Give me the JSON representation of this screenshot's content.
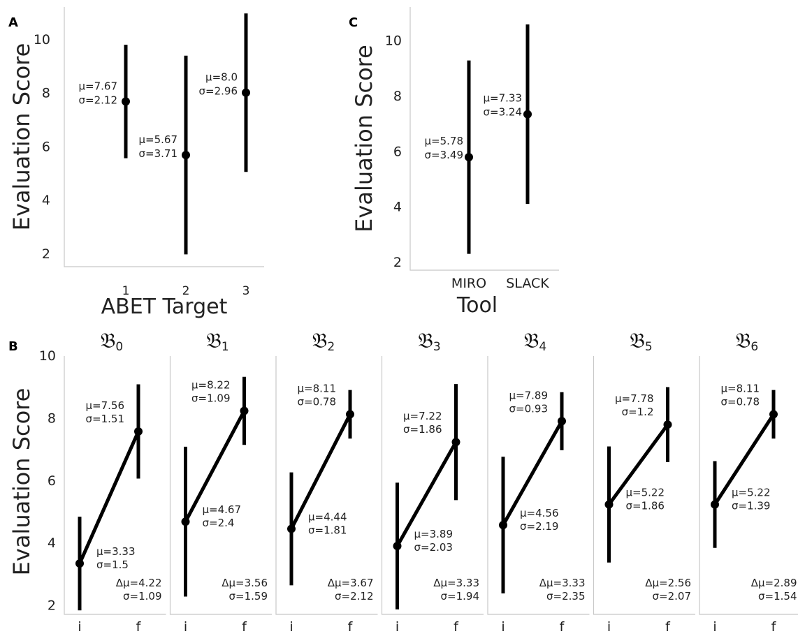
{
  "chart_data": [
    {
      "panel": "A",
      "type": "scatter",
      "ylabel": "Evaluation Score",
      "xlabel": "ABET Target",
      "ylim": [
        1.5,
        11.2
      ],
      "yticks": [
        "2",
        "4",
        "6",
        "8",
        "10"
      ],
      "categories": [
        {
          "base": "𝔆",
          "sub": "1"
        },
        {
          "base": "𝔆",
          "sub": "2"
        },
        {
          "base": "𝔆",
          "sub": "3"
        }
      ],
      "points": [
        {
          "mean": 7.67,
          "low": 5.55,
          "high": 9.79,
          "mu_text": "μ=7.67",
          "sigma_text": "σ=2.12"
        },
        {
          "mean": 5.67,
          "low": 1.96,
          "high": 9.38,
          "mu_text": "μ=5.67",
          "sigma_text": "σ=3.71"
        },
        {
          "mean": 8.0,
          "low": 5.04,
          "high": 10.96,
          "mu_text": "μ=8.0",
          "sigma_text": "σ=2.96"
        }
      ]
    },
    {
      "panel": "C",
      "type": "scatter",
      "ylabel": "Evaluation Score",
      "xlabel": "Tool",
      "ylim": [
        1.7,
        11.2
      ],
      "yticks": [
        "2",
        "4",
        "6",
        "8",
        "10"
      ],
      "categories": [
        "MIRO",
        "SLACK"
      ],
      "points": [
        {
          "mean": 5.78,
          "low": 2.29,
          "high": 9.27,
          "mu_text": "μ=5.78",
          "sigma_text": "σ=3.49"
        },
        {
          "mean": 7.33,
          "low": 4.09,
          "high": 10.57,
          "mu_text": "μ=7.33",
          "sigma_text": "σ=3.24"
        }
      ]
    },
    {
      "panel": "B",
      "type": "line",
      "ylabel": "Evaluation Score",
      "ylim": [
        1.7,
        10.2
      ],
      "yticks": [
        "2",
        "4",
        "6",
        "8",
        "10"
      ],
      "x": [
        "i",
        "f"
      ],
      "subplots": [
        {
          "title_base": "𝔅",
          "title_sub": "0",
          "i": {
            "mean": 3.33,
            "low": 1.83,
            "high": 4.83,
            "mu_text": "μ=3.33",
            "sigma_text": "σ=1.5"
          },
          "f": {
            "mean": 7.56,
            "low": 6.05,
            "high": 9.07,
            "mu_text": "μ=7.56",
            "sigma_text": "σ=1.51"
          },
          "delta_text": "Δμ=4.22",
          "delta_sigma_text": "σ=1.09"
        },
        {
          "title_base": "𝔅",
          "title_sub": "1",
          "i": {
            "mean": 4.67,
            "low": 2.27,
            "high": 7.07,
            "mu_text": "μ=4.67",
            "sigma_text": "σ=2.4"
          },
          "f": {
            "mean": 8.22,
            "low": 7.13,
            "high": 9.31,
            "mu_text": "μ=8.22",
            "sigma_text": "σ=1.09"
          },
          "delta_text": "Δμ=3.56",
          "delta_sigma_text": "σ=1.59"
        },
        {
          "title_base": "𝔅",
          "title_sub": "2",
          "i": {
            "mean": 4.44,
            "low": 2.63,
            "high": 6.25,
            "mu_text": "μ=4.44",
            "sigma_text": "σ=1.81"
          },
          "f": {
            "mean": 8.11,
            "low": 7.33,
            "high": 8.89,
            "mu_text": "μ=8.11",
            "sigma_text": "σ=0.78"
          },
          "delta_text": "Δμ=3.67",
          "delta_sigma_text": "σ=2.12"
        },
        {
          "title_base": "𝔅",
          "title_sub": "3",
          "i": {
            "mean": 3.89,
            "low": 1.86,
            "high": 5.92,
            "mu_text": "μ=3.89",
            "sigma_text": "σ=2.03"
          },
          "f": {
            "mean": 7.22,
            "low": 5.36,
            "high": 9.08,
            "mu_text": "μ=7.22",
            "sigma_text": "σ=1.86"
          },
          "delta_text": "Δμ=3.33",
          "delta_sigma_text": "σ=1.94"
        },
        {
          "title_base": "𝔅",
          "title_sub": "4",
          "i": {
            "mean": 4.56,
            "low": 2.37,
            "high": 6.75,
            "mu_text": "μ=4.56",
            "sigma_text": "σ=2.19"
          },
          "f": {
            "mean": 7.89,
            "low": 6.96,
            "high": 8.82,
            "mu_text": "μ=7.89",
            "sigma_text": "σ=0.93"
          },
          "delta_text": "Δμ=3.33",
          "delta_sigma_text": "σ=2.35"
        },
        {
          "title_base": "𝔅",
          "title_sub": "5",
          "i": {
            "mean": 5.22,
            "low": 3.36,
            "high": 7.08,
            "mu_text": "μ=5.22",
            "sigma_text": "σ=1.86"
          },
          "f": {
            "mean": 7.78,
            "low": 6.58,
            "high": 8.98,
            "mu_text": "μ=7.78",
            "sigma_text": "σ=1.2"
          },
          "delta_text": "Δμ=2.56",
          "delta_sigma_text": "σ=2.07"
        },
        {
          "title_base": "𝔅",
          "title_sub": "6",
          "i": {
            "mean": 5.22,
            "low": 3.83,
            "high": 6.61,
            "mu_text": "μ=5.22",
            "sigma_text": "σ=1.39"
          },
          "f": {
            "mean": 8.11,
            "low": 7.33,
            "high": 8.89,
            "mu_text": "μ=8.11",
            "sigma_text": "σ=0.78"
          },
          "delta_text": "Δμ=2.89",
          "delta_sigma_text": "σ=1.54"
        }
      ]
    }
  ]
}
